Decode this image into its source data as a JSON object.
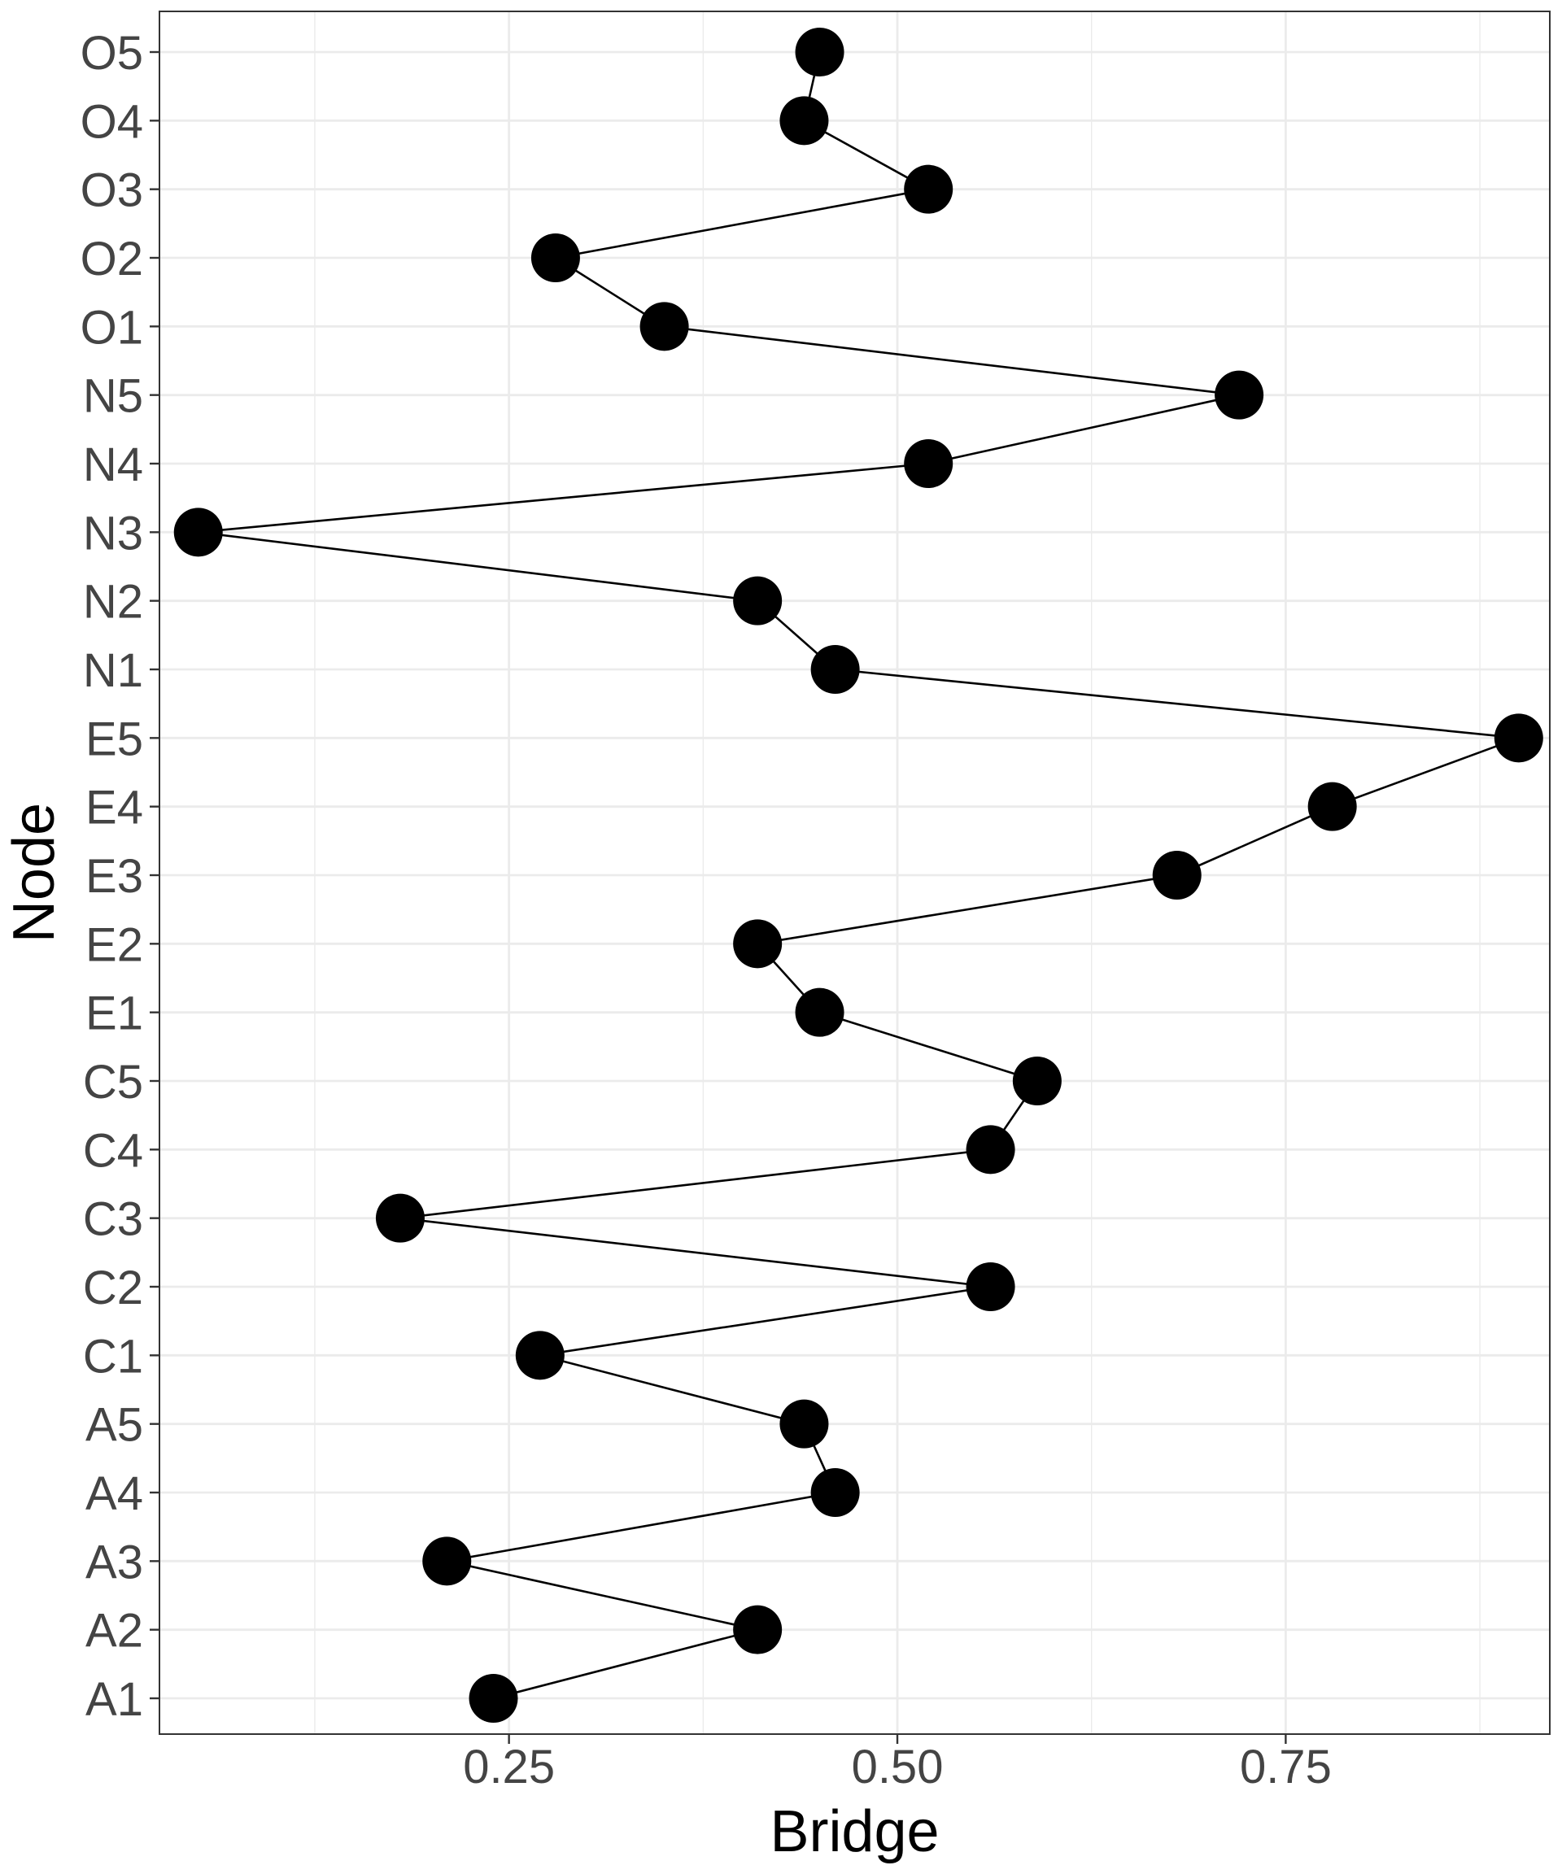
{
  "chart_data": {
    "type": "line",
    "xlabel": "Bridge",
    "ylabel": "Node",
    "xlim": [
      0.025,
      0.92
    ],
    "x_ticks": [
      0.25,
      0.5,
      0.75
    ],
    "x_tick_labels": [
      "0.25",
      "0.50",
      "0.75"
    ],
    "x_minor_ticks": [
      0.125,
      0.375,
      0.625,
      0.875
    ],
    "grid": true,
    "categories": [
      "A1",
      "A2",
      "A3",
      "A4",
      "A5",
      "C1",
      "C2",
      "C3",
      "C4",
      "C5",
      "E1",
      "E2",
      "E3",
      "E4",
      "E5",
      "N1",
      "N2",
      "N3",
      "N4",
      "N5",
      "O1",
      "O2",
      "O3",
      "O4",
      "O5"
    ],
    "values": [
      0.24,
      0.41,
      0.21,
      0.46,
      0.44,
      0.27,
      0.56,
      0.18,
      0.56,
      0.59,
      0.45,
      0.41,
      0.68,
      0.78,
      0.9,
      0.46,
      0.41,
      0.05,
      0.52,
      0.72,
      0.35,
      0.28,
      0.52,
      0.44,
      0.45
    ],
    "colors": {
      "point": "#000000",
      "line": "#000000",
      "grid": "#ebebeb",
      "border": "#333333",
      "tick_text": "#444444",
      "title_text": "#000000"
    }
  }
}
